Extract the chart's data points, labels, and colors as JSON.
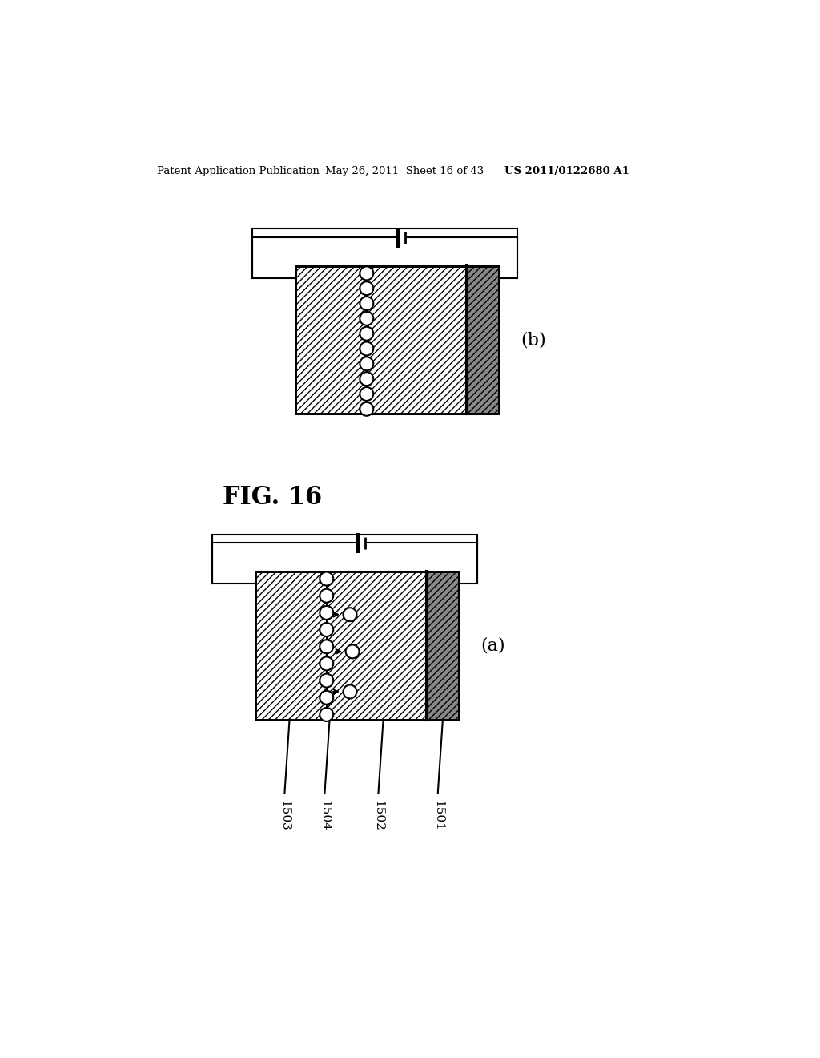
{
  "header_left": "Patent Application Publication",
  "header_middle": "May 26, 2011  Sheet 16 of 43",
  "header_right": "US 2011/0122680 A1",
  "fig_label": "FIG. 16",
  "diagram_b_label": "(b)",
  "diagram_a_label": "(a)",
  "labels": [
    "1503",
    "1504",
    "1502",
    "1501"
  ],
  "bg_color": "#ffffff",
  "line_color": "#000000"
}
